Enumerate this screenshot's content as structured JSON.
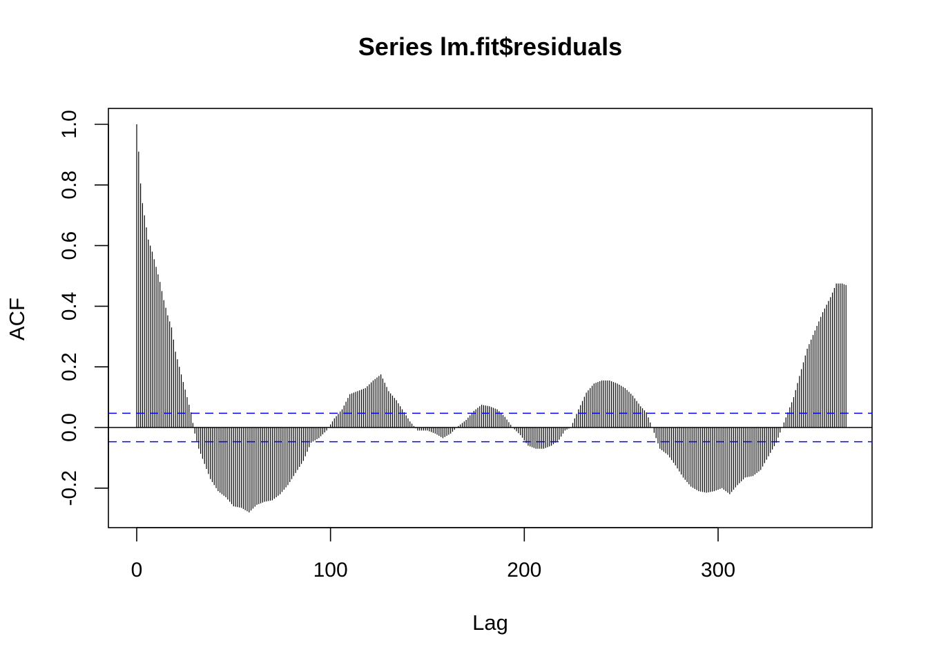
{
  "chart_data": {
    "type": "bar",
    "title": "Series  lm.fit$residuals",
    "xlabel": "Lag",
    "ylabel": "ACF",
    "xlim": [
      -15,
      380
    ],
    "ylim": [
      -0.33,
      1.05
    ],
    "x_ticks": [
      0,
      100,
      200,
      300
    ],
    "x_tick_labels": [
      "0",
      "100",
      "200",
      "300"
    ],
    "y_ticks": [
      -0.2,
      0.0,
      0.2,
      0.4,
      0.6,
      0.8,
      1.0
    ],
    "y_tick_labels": [
      "-0.2",
      "0.0",
      "0.2",
      "0.4",
      "0.6",
      "0.8",
      "1.0"
    ],
    "confidence_band": 0.047,
    "bar_color": "#000000",
    "band_color": "#0000ff",
    "grid": false,
    "lag_values": [
      [
        0,
        1.0
      ],
      [
        1,
        0.91
      ],
      [
        2,
        0.805
      ],
      [
        3,
        0.74
      ],
      [
        4,
        0.7
      ],
      [
        5,
        0.66
      ],
      [
        6,
        0.62
      ],
      [
        8,
        0.58
      ],
      [
        10,
        0.53
      ],
      [
        12,
        0.48
      ],
      [
        14,
        0.42
      ],
      [
        16,
        0.37
      ],
      [
        18,
        0.33
      ],
      [
        20,
        0.25
      ],
      [
        22,
        0.2
      ],
      [
        24,
        0.15
      ],
      [
        26,
        0.1
      ],
      [
        28,
        0.05
      ],
      [
        30,
        -0.02
      ],
      [
        32,
        -0.07
      ],
      [
        35,
        -0.12
      ],
      [
        38,
        -0.17
      ],
      [
        42,
        -0.21
      ],
      [
        46,
        -0.23
      ],
      [
        50,
        -0.26
      ],
      [
        54,
        -0.265
      ],
      [
        58,
        -0.28
      ],
      [
        62,
        -0.255
      ],
      [
        66,
        -0.245
      ],
      [
        70,
        -0.24
      ],
      [
        74,
        -0.22
      ],
      [
        78,
        -0.19
      ],
      [
        82,
        -0.15
      ],
      [
        86,
        -0.11
      ],
      [
        90,
        -0.05
      ],
      [
        94,
        -0.035
      ],
      [
        98,
        -0.01
      ],
      [
        102,
        0.03
      ],
      [
        106,
        0.06
      ],
      [
        110,
        0.11
      ],
      [
        114,
        0.12
      ],
      [
        118,
        0.13
      ],
      [
        122,
        0.155
      ],
      [
        126,
        0.175
      ],
      [
        130,
        0.12
      ],
      [
        134,
        0.09
      ],
      [
        138,
        0.05
      ],
      [
        141,
        0.02
      ],
      [
        145,
        -0.01
      ],
      [
        150,
        -0.01
      ],
      [
        154,
        -0.02
      ],
      [
        158,
        -0.035
      ],
      [
        162,
        -0.02
      ],
      [
        166,
        0.005
      ],
      [
        170,
        0.025
      ],
      [
        174,
        0.055
      ],
      [
        178,
        0.075
      ],
      [
        182,
        0.07
      ],
      [
        186,
        0.06
      ],
      [
        190,
        0.035
      ],
      [
        194,
        0.0
      ],
      [
        198,
        -0.025
      ],
      [
        202,
        -0.06
      ],
      [
        206,
        -0.07
      ],
      [
        210,
        -0.07
      ],
      [
        214,
        -0.06
      ],
      [
        218,
        -0.04
      ],
      [
        221,
        -0.01
      ],
      [
        224,
        0.0
      ],
      [
        228,
        0.06
      ],
      [
        232,
        0.115
      ],
      [
        236,
        0.145
      ],
      [
        240,
        0.155
      ],
      [
        244,
        0.155
      ],
      [
        248,
        0.145
      ],
      [
        252,
        0.13
      ],
      [
        256,
        0.105
      ],
      [
        260,
        0.07
      ],
      [
        263,
        0.05
      ],
      [
        266,
        0.0
      ],
      [
        270,
        -0.07
      ],
      [
        274,
        -0.09
      ],
      [
        278,
        -0.125
      ],
      [
        282,
        -0.165
      ],
      [
        286,
        -0.195
      ],
      [
        290,
        -0.21
      ],
      [
        294,
        -0.215
      ],
      [
        298,
        -0.21
      ],
      [
        302,
        -0.2
      ],
      [
        306,
        -0.22
      ],
      [
        310,
        -0.19
      ],
      [
        314,
        -0.165
      ],
      [
        318,
        -0.16
      ],
      [
        322,
        -0.14
      ],
      [
        326,
        -0.095
      ],
      [
        330,
        -0.05
      ],
      [
        333,
        0.0
      ],
      [
        336,
        0.05
      ],
      [
        339,
        0.1
      ],
      [
        342,
        0.17
      ],
      [
        346,
        0.26
      ],
      [
        350,
        0.32
      ],
      [
        354,
        0.38
      ],
      [
        358,
        0.43
      ],
      [
        361,
        0.475
      ],
      [
        364,
        0.475
      ],
      [
        366,
        0.47
      ]
    ]
  }
}
